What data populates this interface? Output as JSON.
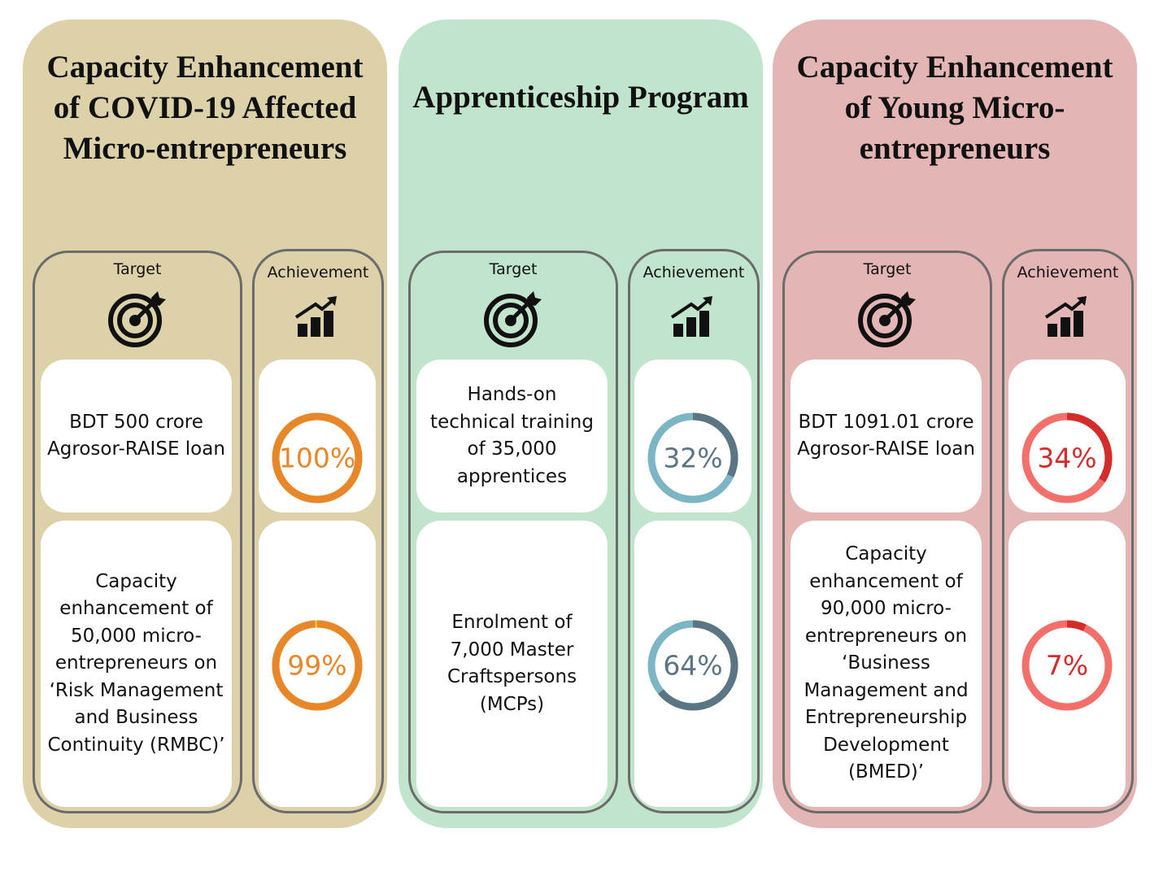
{
  "panels": [
    {
      "title": "Capacity Enhancement of COVID-19 Affected Micro-entrepreneurs",
      "target_label": "Target",
      "achievement_label": "Achievement",
      "rows": [
        {
          "target": "BDT 500 crore Agrosor-RAISE loan",
          "achievement": {
            "value": 100,
            "label": "100%"
          }
        },
        {
          "target": "Capacity enhancement of 50,000 micro-entrepreneurs on ‘Risk Management and Business Continuity (RMBC)’",
          "achievement": {
            "value": 99,
            "label": "99%"
          }
        }
      ]
    },
    {
      "title": "Apprenticeship Program",
      "target_label": "Target",
      "achievement_label": "Achievement",
      "rows": [
        {
          "target": "Hands-on technical training of 35,000 apprentices",
          "achievement": {
            "value": 32,
            "label": "32%"
          }
        },
        {
          "target": "Enrolment  of 7,000 Master Craftspersons (MCPs)",
          "achievement": {
            "value": 64,
            "label": "64%"
          }
        }
      ]
    },
    {
      "title": "Capacity Enhancement of Young Micro-entrepreneurs",
      "target_label": "Target",
      "achievement_label": "Achievement",
      "rows": [
        {
          "target": "BDT 1091.01 crore Agrosor-RAISE loan",
          "achievement": {
            "value": 34,
            "label": "34%"
          }
        },
        {
          "target": "Capacity enhancement of 90,000 micro-entrepreneurs on ‘Business Management and Entrepreneurship Development (BMED)’",
          "achievement": {
            "value": 7,
            "label": "7%"
          }
        }
      ]
    }
  ]
}
